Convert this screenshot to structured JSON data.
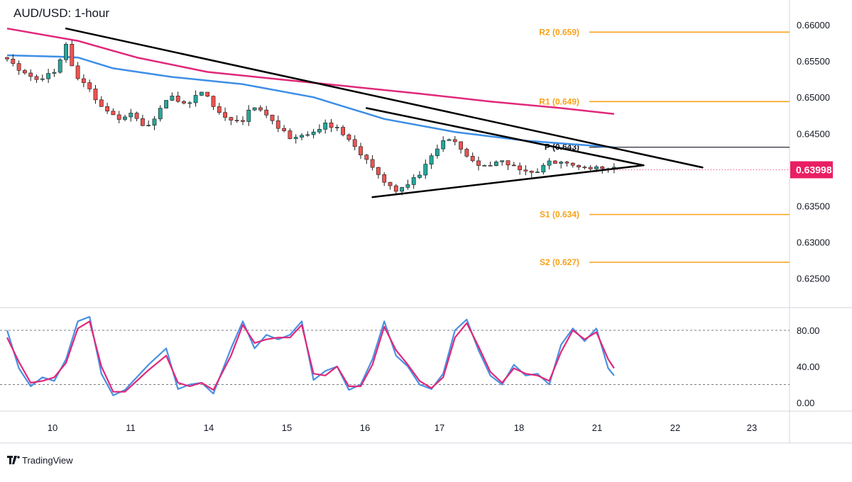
{
  "title": "AUD/USD: 1-hour",
  "brand": {
    "name": "TradingView",
    "icon": "tradingview-logo-icon"
  },
  "colors": {
    "bull": "#26a69a",
    "bear": "#ef5350",
    "wick": "#1a1a1a",
    "ma_slow": "#e0287a",
    "ma_fast": "#3d8ee6",
    "pivot_sr": "#f7a21b",
    "pivot_p": "#131722",
    "trendline": "#000000",
    "last_price_bg": "#e91e63",
    "stoch_k": "#4a90e2",
    "stoch_d": "#e0287a",
    "grid": "#d1d4dc"
  },
  "chart_data": [
    {
      "type": "candlestick",
      "title": "AUD/USD: 1-hour",
      "ylim": [
        0.6225,
        0.6605
      ],
      "y_ticks": [
        "0.66000",
        "0.65500",
        "0.65000",
        "0.64500",
        "0.64000",
        "0.63500",
        "0.63000",
        "0.62500"
      ],
      "x_ticks": [
        "10",
        "11",
        "14",
        "15",
        "16",
        "17",
        "18",
        "21",
        "22",
        "23"
      ],
      "last_price": "0.63998",
      "last_price_value": 0.63998,
      "price_path": [
        [
          0,
          0.6555
        ],
        [
          3,
          0.6535
        ],
        [
          6,
          0.653
        ],
        [
          9,
          0.6545
        ],
        [
          10.5,
          0.658
        ],
        [
          11.2,
          0.656
        ],
        [
          12,
          0.6525
        ],
        [
          14,
          0.652
        ],
        [
          15,
          0.651
        ],
        [
          16,
          0.649
        ],
        [
          19,
          0.6475
        ],
        [
          22,
          0.6485
        ],
        [
          24,
          0.6465
        ],
        [
          26,
          0.648
        ],
        [
          28,
          0.6502
        ],
        [
          31,
          0.6488
        ],
        [
          34,
          0.6512
        ],
        [
          37,
          0.6482
        ],
        [
          40,
          0.647
        ],
        [
          43,
          0.649
        ],
        [
          46,
          0.6462
        ],
        [
          49,
          0.645
        ],
        [
          52,
          0.6455
        ],
        [
          55,
          0.6472
        ],
        [
          58,
          0.6445
        ],
        [
          61,
          0.6418
        ],
        [
          64,
          0.6395
        ],
        [
          67,
          0.6375
        ],
        [
          70,
          0.6395
        ],
        [
          73,
          0.642
        ],
        [
          75,
          0.6448
        ],
        [
          78,
          0.6425
        ],
        [
          81,
          0.6408
        ],
        [
          84,
          0.642
        ],
        [
          87,
          0.6402
        ],
        [
          90,
          0.6392
        ],
        [
          92,
          0.6408
        ],
        [
          95,
          0.6417
        ],
        [
          98,
          0.641
        ],
        [
          101,
          0.64
        ],
        [
          103,
          0.6402
        ]
      ],
      "pivots": [
        {
          "label": "R2 (0.659)",
          "value": 0.659,
          "kind": "sr"
        },
        {
          "label": "R1 (0.649)",
          "value": 0.6494,
          "kind": "sr"
        },
        {
          "label": "P (0.643)",
          "value": 0.6431,
          "kind": "p"
        },
        {
          "label": "S1 (0.634)",
          "value": 0.6338,
          "kind": "sr"
        },
        {
          "label": "S2 (0.627)",
          "value": 0.6272,
          "kind": "sr"
        }
      ],
      "ma_slow": [
        [
          0,
          0.6595
        ],
        [
          12,
          0.6578
        ],
        [
          22,
          0.6555
        ],
        [
          34,
          0.6535
        ],
        [
          46,
          0.6525
        ],
        [
          58,
          0.6515
        ],
        [
          70,
          0.6505
        ],
        [
          82,
          0.6494
        ],
        [
          94,
          0.6485
        ],
        [
          103,
          0.6477
        ]
      ],
      "ma_fast": [
        [
          0,
          0.6558
        ],
        [
          9,
          0.6556
        ],
        [
          12,
          0.6555
        ],
        [
          18,
          0.654
        ],
        [
          28,
          0.6528
        ],
        [
          40,
          0.6518
        ],
        [
          52,
          0.65
        ],
        [
          64,
          0.647
        ],
        [
          76,
          0.6452
        ],
        [
          88,
          0.644
        ],
        [
          103,
          0.6431
        ]
      ],
      "trendlines": [
        {
          "from": [
            10,
            0.6595
          ],
          "to": [
            118,
            0.6403
          ]
        },
        {
          "from": [
            61,
            0.6485
          ],
          "to": [
            108,
            0.6406
          ]
        },
        {
          "from": [
            62,
            0.6362
          ],
          "to": [
            108,
            0.6406
          ]
        }
      ]
    },
    {
      "type": "line",
      "ylim": [
        0,
        100
      ],
      "y_ticks": [
        "80.00",
        "40.00",
        "0.00"
      ],
      "levels": [
        80,
        20
      ],
      "series": [
        {
          "key": "k",
          "values": [
            [
              0,
              80
            ],
            [
              2,
              38
            ],
            [
              4,
              18
            ],
            [
              6,
              28
            ],
            [
              8,
              24
            ],
            [
              10,
              48
            ],
            [
              12,
              90
            ],
            [
              14,
              95
            ],
            [
              16,
              32
            ],
            [
              18,
              8
            ],
            [
              20,
              14
            ],
            [
              24,
              42
            ],
            [
              27,
              60
            ],
            [
              29,
              15
            ],
            [
              31,
              20
            ],
            [
              33,
              22
            ],
            [
              35,
              10
            ],
            [
              38,
              60
            ],
            [
              40,
              90
            ],
            [
              42,
              60
            ],
            [
              44,
              75
            ],
            [
              46,
              70
            ],
            [
              48,
              75
            ],
            [
              50,
              90
            ],
            [
              52,
              25
            ],
            [
              54,
              35
            ],
            [
              56,
              40
            ],
            [
              58,
              14
            ],
            [
              60,
              20
            ],
            [
              62,
              48
            ],
            [
              64,
              90
            ],
            [
              66,
              52
            ],
            [
              68,
              40
            ],
            [
              70,
              20
            ],
            [
              72,
              15
            ],
            [
              74,
              32
            ],
            [
              76,
              80
            ],
            [
              78,
              92
            ],
            [
              80,
              58
            ],
            [
              82,
              30
            ],
            [
              84,
              20
            ],
            [
              86,
              42
            ],
            [
              88,
              30
            ],
            [
              90,
              32
            ],
            [
              92,
              20
            ],
            [
              94,
              64
            ],
            [
              96,
              82
            ],
            [
              98,
              68
            ],
            [
              100,
              82
            ],
            [
              102,
              38
            ],
            [
              103,
              30
            ]
          ]
        },
        {
          "key": "d",
          "values": [
            [
              0,
              72
            ],
            [
              2,
              45
            ],
            [
              4,
              22
            ],
            [
              6,
              24
            ],
            [
              8,
              28
            ],
            [
              10,
              44
            ],
            [
              12,
              82
            ],
            [
              14,
              90
            ],
            [
              16,
              40
            ],
            [
              18,
              12
            ],
            [
              20,
              12
            ],
            [
              24,
              36
            ],
            [
              27,
              52
            ],
            [
              29,
              22
            ],
            [
              31,
              18
            ],
            [
              33,
              22
            ],
            [
              35,
              14
            ],
            [
              38,
              52
            ],
            [
              40,
              86
            ],
            [
              42,
              66
            ],
            [
              44,
              70
            ],
            [
              46,
              72
            ],
            [
              48,
              72
            ],
            [
              50,
              86
            ],
            [
              52,
              32
            ],
            [
              54,
              30
            ],
            [
              56,
              40
            ],
            [
              58,
              18
            ],
            [
              60,
              18
            ],
            [
              62,
              42
            ],
            [
              64,
              84
            ],
            [
              66,
              58
            ],
            [
              68,
              42
            ],
            [
              70,
              24
            ],
            [
              72,
              16
            ],
            [
              74,
              28
            ],
            [
              76,
              72
            ],
            [
              78,
              88
            ],
            [
              80,
              62
            ],
            [
              82,
              34
            ],
            [
              84,
              22
            ],
            [
              86,
              38
            ],
            [
              88,
              32
            ],
            [
              90,
              30
            ],
            [
              92,
              24
            ],
            [
              94,
              56
            ],
            [
              96,
              80
            ],
            [
              98,
              70
            ],
            [
              100,
              78
            ],
            [
              102,
              48
            ],
            [
              103,
              38
            ]
          ]
        }
      ]
    }
  ]
}
